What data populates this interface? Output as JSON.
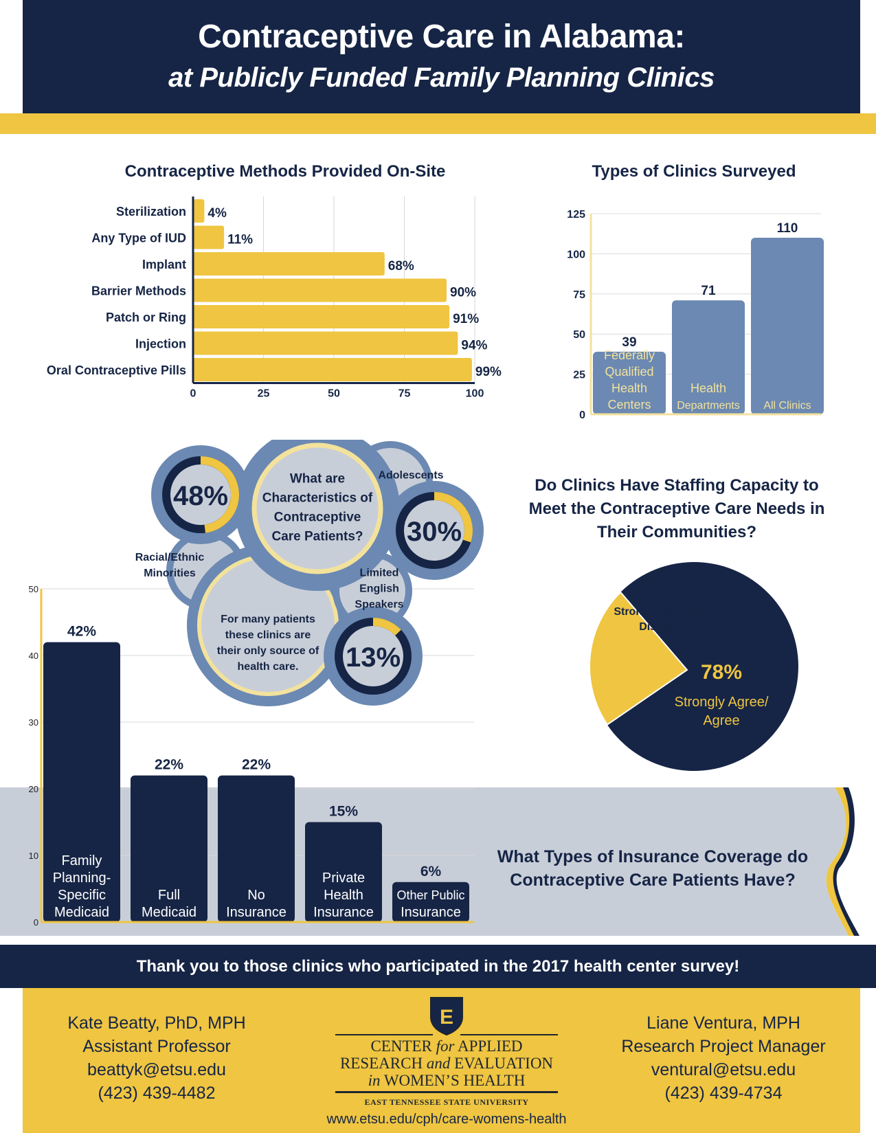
{
  "header": {
    "title": "Contraceptive Care in Alabama:",
    "subtitle": "at Publicly Funded Family Planning Clinics"
  },
  "colors": {
    "navy": "#162545",
    "gold": "#efc541",
    "steel_blue": "#6b89b2",
    "light_gray": "#c8ced8",
    "pale_yellow": "#f3e29c"
  },
  "chart_data": [
    {
      "type": "bar",
      "orientation": "horizontal",
      "title": "Contraceptive Methods Provided On-Site",
      "categories": [
        "Sterilization",
        "Any Type of IUD",
        "Implant",
        "Barrier Methods",
        "Patch or Ring",
        "Injection",
        "Oral Contraceptive Pills"
      ],
      "values": [
        4,
        11,
        68,
        90,
        91,
        94,
        99
      ],
      "data_labels": [
        "4%",
        "11%",
        "68%",
        "90%",
        "91%",
        "94%",
        "99%"
      ],
      "xlim": [
        0,
        100
      ],
      "xticks": [
        "0",
        "25",
        "50",
        "75",
        "100"
      ],
      "grid": true
    },
    {
      "type": "bar",
      "title": "Types of Clinics Surveyed",
      "categories": [
        "Federally Qualified Health Centers",
        "Health Departments",
        "All Clinics"
      ],
      "category_lines": [
        [
          "Federally",
          "Qualified",
          "Health",
          "Centers"
        ],
        [
          "Health",
          "Departments"
        ],
        [
          "All Clinics"
        ]
      ],
      "values": [
        39,
        71,
        110
      ],
      "data_labels": [
        "39",
        "71",
        "110"
      ],
      "ylim": [
        0,
        125
      ],
      "yticks": [
        "0",
        "25",
        "50",
        "75",
        "100",
        "125"
      ],
      "grid": true
    },
    {
      "type": "pie",
      "title": "Do Clinics Have Staffing Capacity to Meet the Contraceptive Care Needs in Their Communities?",
      "title_lines": [
        "Do Clinics Have Staffing Capacity to",
        "Meet the Contraceptive Care Needs in",
        "Their Communities?"
      ],
      "slices": [
        {
          "label": "Strongly Disagree/ Disagree",
          "label_lines": [
            "Strongly Disagree/",
            "Disagree"
          ],
          "value": 22,
          "display": "22%"
        },
        {
          "label": "Strongly Agree/ Agree",
          "label_lines": [
            "Strongly Agree/",
            "Agree"
          ],
          "value": 78,
          "display": "78%"
        }
      ]
    },
    {
      "type": "bar",
      "title": "What Types of Insurance Coverage do Contraceptive Care Patients Have?",
      "title_lines": [
        "What Types of Insurance Coverage do",
        "Contraceptive Care Patients Have?"
      ],
      "categories": [
        "Family Planning-Specific Medicaid",
        "Full Medicaid",
        "No Insurance",
        "Private Health Insurance",
        "Other Public Insurance"
      ],
      "category_lines": [
        [
          "Family",
          "Planning-",
          "Specific",
          "Medicaid"
        ],
        [
          "Full",
          "Medicaid"
        ],
        [
          "No",
          "Insurance"
        ],
        [
          "Private",
          "Health",
          "Insurance"
        ],
        [
          "Other Public",
          "Insurance"
        ]
      ],
      "values": [
        42,
        22,
        22,
        15,
        6
      ],
      "data_labels": [
        "42%",
        "22%",
        "22%",
        "15%",
        "6%"
      ],
      "ylim": [
        0,
        50
      ],
      "yticks": [
        "0",
        "10",
        "20",
        "30",
        "40",
        "50"
      ],
      "grid": true
    },
    {
      "type": "donut",
      "title_lines": [
        "What are",
        "Characteristics of",
        "Contraceptive",
        "Care Patients?"
      ],
      "note_lines": [
        "For many patients",
        "these clinics are",
        "their only source of",
        "health care."
      ],
      "items": [
        {
          "label_lines": [
            "Racial/Ethnic",
            "Minorities"
          ],
          "value": 48,
          "display": "48%"
        },
        {
          "label_lines": [
            "Adolescents"
          ],
          "value": 30,
          "display": "30%"
        },
        {
          "label_lines": [
            "Limited",
            "English",
            "Speakers"
          ],
          "value": 13,
          "display": "13%"
        }
      ]
    }
  ],
  "thanks": "Thank you to those clinics who participated in the 2017 health center survey!",
  "contacts": [
    {
      "name": "Kate Beatty, PhD, MPH",
      "role": "Assistant Professor",
      "email": "beattyk@etsu.edu",
      "phone": "(423) 439-4482"
    },
    {
      "name": "Liane Ventura, MPH",
      "role": "Research Project Manager",
      "email": "ventural@etsu.edu",
      "phone": "(423) 439-4734"
    }
  ],
  "logo": {
    "letter": "E",
    "line1_a": "CENTER ",
    "line1_b": "for",
    "line1_c": " APPLIED",
    "line2_a": "RESEARCH ",
    "line2_b": "and",
    "line2_c": " EVALUATION",
    "line3_a": "in",
    "line3_b": " WOMEN’S HEALTH",
    "university": "EAST TENNESSEE STATE UNIVERSITY",
    "url": "www.etsu.edu/cph/care-womens-health"
  }
}
